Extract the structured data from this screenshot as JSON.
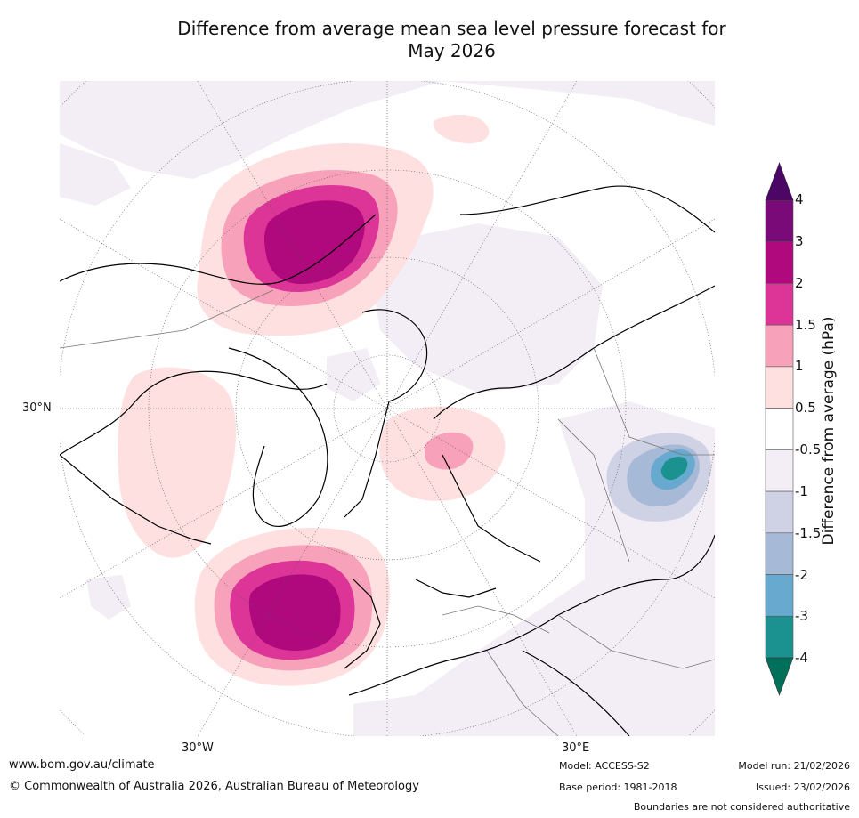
{
  "title": {
    "line1": "Difference from average mean sea level pressure forecast for",
    "line2": "May 2026"
  },
  "map": {
    "projection": "north polar stereographic",
    "lon_labels": [
      "30°W",
      "30°E"
    ],
    "lat_label": "30°N",
    "anomaly_regions": [
      {
        "region": "North Pacific / Bering Sea",
        "peak_hPa": 3,
        "sign": "positive"
      },
      {
        "region": "North Atlantic west of Ireland",
        "peak_hPa": 3,
        "sign": "positive"
      },
      {
        "region": "Scandinavia",
        "peak_hPa": 1.5,
        "sign": "positive"
      },
      {
        "region": "Canada and Alaska",
        "peak_hPa": 1,
        "sign": "positive"
      },
      {
        "region": "Central Asia / Mongolia",
        "peak_hPa": -3,
        "sign": "negative"
      }
    ]
  },
  "colorbar": {
    "label": "Difference from average (hPa)",
    "ticks": [
      "4",
      "3",
      "2",
      "1.5",
      "1",
      "0.5",
      "-0.5",
      "-1",
      "-1.5",
      "-2",
      "-3",
      "-4"
    ],
    "colors": [
      "#7a0a78",
      "#b0087d",
      "#dc3597",
      "#f7a1ba",
      "#fde0df",
      "#ffffff",
      "#f3edf5",
      "#cfd2e5",
      "#a6b9d6",
      "#67a9cf",
      "#1b9190"
    ],
    "over_color": "#4b0666",
    "under_color": "#00705a"
  },
  "footer": {
    "url": "www.bom.gov.au/climate",
    "copyright": "© Commonwealth of Australia 2026, Australian Bureau of Meteorology",
    "model": "Model: ACCESS-S2",
    "base_period": "Base period: 1981-2018",
    "model_run": "Model run: 21/02/2026",
    "issued": "Issued: 23/02/2026",
    "disclaimer": "Boundaries are not considered authoritative"
  }
}
